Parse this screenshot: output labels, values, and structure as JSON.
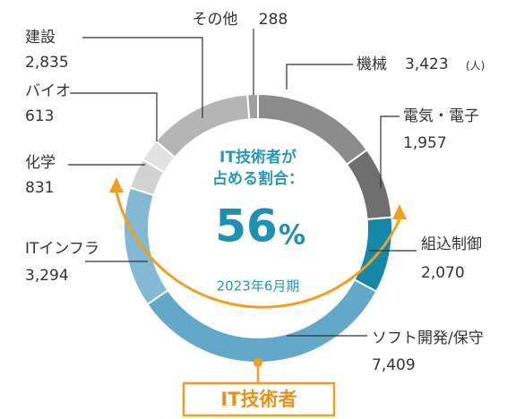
{
  "chart_data": {
    "type": "donut",
    "categories": [
      "機械",
      "電気・電子",
      "組込制御",
      "ソフト開発/保守",
      "ITインフラ",
      "化学",
      "バイオ",
      "建設",
      "その他"
    ],
    "values": [
      3423,
      1957,
      2070,
      7409,
      3294,
      831,
      613,
      2835,
      288
    ],
    "value_labels": [
      "3,423",
      "1,957",
      "2,070",
      "7,409",
      "3,294",
      "831",
      "613",
      "2,835",
      "288"
    ],
    "colors": [
      "#8c8c8c",
      "#6f6f6f",
      "#1588a8",
      "#62a9c9",
      "#84b9d3",
      "#d2d2d2",
      "#e2e2e2",
      "#b5b5b5",
      "#a0a0a0"
    ],
    "unit": "(人)",
    "center_title": [
      "IT技術者が",
      "占める割合："
    ],
    "center_value": "56",
    "center_unit": "%",
    "center_note": "2023年6月期",
    "bracket_label": "IT技術者"
  }
}
